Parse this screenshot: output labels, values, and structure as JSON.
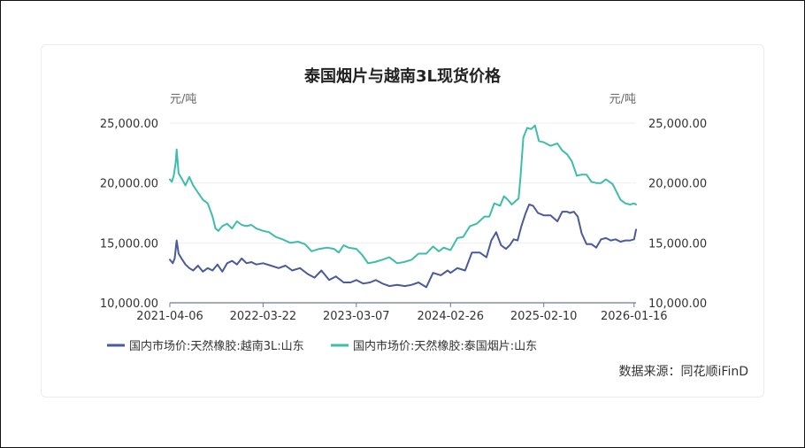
{
  "chart_data": {
    "type": "line",
    "title": "泰国烟片与越南3L现货价格",
    "y_unit_left": "元/吨",
    "y_unit_right": "元/吨",
    "ylim": [
      10000,
      25000
    ],
    "y_ticks": [
      10000,
      15000,
      20000,
      25000
    ],
    "y_tick_labels": [
      "10,000.00",
      "15,000.00",
      "20,000.00",
      "25,000.00"
    ],
    "x_tick_labels": [
      "2021-04-06",
      "2022-03-22",
      "2023-03-07",
      "2024-02-26",
      "2025-02-10",
      "2026-01-16"
    ],
    "x_tick_years": [
      2021.26,
      2022.22,
      2023.18,
      2024.15,
      2025.11,
      2026.04
    ],
    "x_range": [
      2021.26,
      2026.06
    ],
    "series": [
      {
        "name": "国内市场价:天然橡胶:越南3L:山东",
        "color": "#4a5a9a",
        "x": [
          2021.26,
          2021.29,
          2021.31,
          2021.33,
          2021.35,
          2021.38,
          2021.42,
          2021.46,
          2021.5,
          2021.55,
          2021.6,
          2021.65,
          2021.7,
          2021.75,
          2021.8,
          2021.85,
          2021.9,
          2021.95,
          2022.0,
          2022.05,
          2022.1,
          2022.15,
          2022.22,
          2022.3,
          2022.38,
          2022.45,
          2022.52,
          2022.6,
          2022.68,
          2022.75,
          2022.82,
          2022.9,
          2022.97,
          2023.05,
          2023.12,
          2023.18,
          2023.25,
          2023.32,
          2023.38,
          2023.45,
          2023.52,
          2023.6,
          2023.68,
          2023.75,
          2023.82,
          2023.9,
          2023.97,
          2024.05,
          2024.12,
          2024.15,
          2024.22,
          2024.3,
          2024.37,
          2024.45,
          2024.52,
          2024.57,
          2024.62,
          2024.67,
          2024.72,
          2024.76,
          2024.8,
          2024.84,
          2024.88,
          2024.92,
          2024.96,
          2025.0,
          2025.05,
          2025.11,
          2025.18,
          2025.25,
          2025.3,
          2025.35,
          2025.38,
          2025.42,
          2025.46,
          2025.5,
          2025.55,
          2025.6,
          2025.65,
          2025.7,
          2025.75,
          2025.8,
          2025.85,
          2025.9,
          2025.95,
          2026.0,
          2026.04,
          2026.06
        ],
        "values": [
          13600,
          13300,
          13700,
          15200,
          14100,
          13700,
          13200,
          12900,
          12700,
          13100,
          12600,
          12900,
          12700,
          13200,
          12600,
          13300,
          13500,
          13200,
          13700,
          13300,
          13400,
          13200,
          13300,
          13100,
          12900,
          13100,
          12700,
          12900,
          12400,
          12100,
          12700,
          11900,
          12200,
          11700,
          11700,
          11900,
          11600,
          11700,
          11900,
          11600,
          11400,
          11500,
          11400,
          11500,
          11700,
          11300,
          12500,
          12300,
          12700,
          12500,
          12900,
          12700,
          14200,
          14200,
          13800,
          15200,
          15900,
          14800,
          14500,
          14800,
          15300,
          15200,
          16400,
          17400,
          18200,
          18100,
          17500,
          17300,
          17300,
          16800,
          17600,
          17600,
          17500,
          17600,
          17200,
          15800,
          14900,
          14900,
          14600,
          15300,
          15400,
          15200,
          15300,
          15100,
          15200,
          15200,
          15300,
          16100
        ]
      },
      {
        "name": "国内市场价:天然橡胶:泰国烟片:山东",
        "color": "#3dbdaa",
        "x": [
          2021.26,
          2021.28,
          2021.3,
          2021.32,
          2021.33,
          2021.35,
          2021.38,
          2021.42,
          2021.46,
          2021.5,
          2021.55,
          2021.6,
          2021.65,
          2021.7,
          2021.73,
          2021.76,
          2021.8,
          2021.85,
          2021.9,
          2021.95,
          2022.0,
          2022.05,
          2022.1,
          2022.15,
          2022.22,
          2022.28,
          2022.35,
          2022.42,
          2022.5,
          2022.58,
          2022.65,
          2022.72,
          2022.8,
          2022.88,
          2022.95,
          2023.0,
          2023.05,
          2023.1,
          2023.18,
          2023.24,
          2023.3,
          2023.37,
          2023.45,
          2023.52,
          2023.6,
          2023.67,
          2023.75,
          2023.82,
          2023.9,
          2023.97,
          2024.03,
          2024.08,
          2024.15,
          2024.22,
          2024.28,
          2024.35,
          2024.42,
          2024.5,
          2024.55,
          2024.6,
          2024.63,
          2024.66,
          2024.7,
          2024.74,
          2024.78,
          2024.82,
          2024.85,
          2024.87,
          2024.9,
          2024.94,
          2024.98,
          2025.02,
          2025.06,
          2025.11,
          2025.18,
          2025.25,
          2025.3,
          2025.35,
          2025.4,
          2025.45,
          2025.5,
          2025.55,
          2025.6,
          2025.65,
          2025.7,
          2025.75,
          2025.82,
          2025.9,
          2025.95,
          2026.0,
          2026.04,
          2026.06
        ],
        "values": [
          20300,
          20100,
          20600,
          21700,
          22800,
          20800,
          20400,
          19800,
          20500,
          19800,
          19200,
          18600,
          18300,
          17200,
          16200,
          16000,
          16400,
          16600,
          16200,
          16800,
          16500,
          16400,
          16500,
          16200,
          16000,
          15900,
          15500,
          15300,
          15000,
          15100,
          14900,
          14300,
          14500,
          14600,
          14500,
          14200,
          14800,
          14600,
          14500,
          14000,
          13300,
          13400,
          13600,
          13800,
          13300,
          13400,
          13600,
          14100,
          14100,
          14700,
          14300,
          14600,
          14400,
          15400,
          15500,
          16400,
          16600,
          17200,
          17200,
          18300,
          18200,
          18100,
          18900,
          18600,
          18200,
          18500,
          18700,
          20400,
          23800,
          24600,
          24500,
          24800,
          23500,
          23400,
          23100,
          23300,
          22700,
          22400,
          21800,
          20600,
          20700,
          20700,
          20100,
          20000,
          20000,
          20300,
          19900,
          18600,
          18300,
          18200,
          18300,
          18200
        ]
      }
    ],
    "legend": "bottom-left",
    "source": "数据来源：同花顺iFinD"
  }
}
